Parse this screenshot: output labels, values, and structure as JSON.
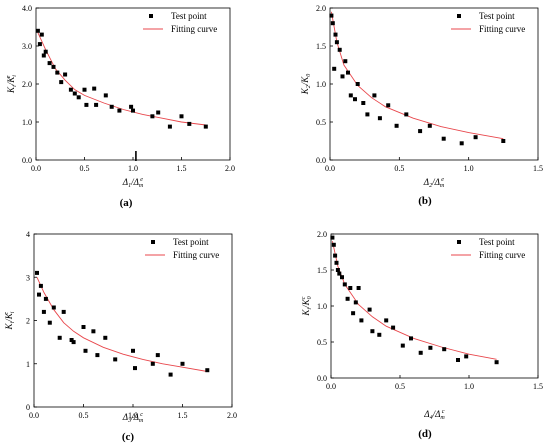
{
  "chart_data": [
    {
      "type": "scatter",
      "caption": "(a)",
      "ylabel": "K_i/K_i^e",
      "ylabel_parts": {
        "base": "K",
        "sub": "i",
        "div": "/K",
        "sub2": "i",
        "sup": "e"
      },
      "xlabel": "Δ_1/Δ_m^e",
      "xlabel_parts": {
        "base": "Δ",
        "sub": "1",
        "div": "/Δ",
        "sub2": "m",
        "sup": "e"
      },
      "xlim": [
        0,
        2.0
      ],
      "ylim": [
        0,
        4.0
      ],
      "xticks": [
        "0.0",
        "0.5",
        "1.0",
        "1.5",
        "2.0"
      ],
      "yticks": [
        "0.0",
        "1.0",
        "2.0",
        "3.0",
        "4.0"
      ],
      "xtick_values": [
        0,
        0.5,
        1.0,
        1.5,
        2.0
      ],
      "ytick_values": [
        0,
        1,
        2,
        3,
        4
      ],
      "legend": {
        "position": "top-right",
        "test": "Test point",
        "fit": "Fitting curve"
      },
      "marker_x": 1.03,
      "test_points": {
        "x": [
          0.02,
          0.04,
          0.06,
          0.08,
          0.1,
          0.14,
          0.18,
          0.22,
          0.26,
          0.3,
          0.36,
          0.4,
          0.44,
          0.5,
          0.52,
          0.6,
          0.62,
          0.72,
          0.78,
          0.86,
          0.98,
          1.0,
          1.2,
          1.26,
          1.38,
          1.5,
          1.58,
          1.75
        ],
        "y": [
          3.4,
          3.05,
          3.3,
          2.75,
          2.85,
          2.55,
          2.45,
          2.3,
          2.05,
          2.25,
          1.85,
          1.75,
          1.65,
          1.85,
          1.45,
          1.88,
          1.45,
          1.7,
          1.4,
          1.3,
          1.4,
          1.3,
          1.15,
          1.25,
          0.88,
          1.15,
          0.95,
          0.88
        ]
      },
      "fitting_curve": {
        "x": [
          0.02,
          0.1,
          0.2,
          0.3,
          0.4,
          0.5,
          0.7,
          0.9,
          1.1,
          1.3,
          1.5,
          1.75
        ],
        "y": [
          3.35,
          2.9,
          2.4,
          2.1,
          1.85,
          1.7,
          1.5,
          1.33,
          1.2,
          1.1,
          1.0,
          0.92
        ]
      }
    },
    {
      "type": "scatter",
      "caption": "(b)",
      "ylabel": "K_2/K_0",
      "ylabel_parts": {
        "base": "K",
        "sub": "2",
        "div": "/K",
        "sub2": "0",
        "sup": ""
      },
      "xlabel": "Δ_2/Δ_m^e",
      "xlabel_parts": {
        "base": "Δ",
        "sub": "2",
        "div": "/Δ",
        "sub2": "m",
        "sup": "e"
      },
      "xlim": [
        0,
        1.5
      ],
      "ylim": [
        0,
        2.0
      ],
      "xticks": [
        "0.0",
        "0.5",
        "1.0",
        "1.5"
      ],
      "yticks": [
        "0.0",
        "0.5",
        "1.0",
        "1.5",
        "2.0"
      ],
      "xtick_values": [
        0,
        0.5,
        1.0,
        1.5
      ],
      "ytick_values": [
        0,
        0.5,
        1.0,
        1.5,
        2.0
      ],
      "legend": {
        "position": "top-right",
        "test": "Test point",
        "fit": "Fitting curve"
      },
      "test_points": {
        "x": [
          0.01,
          0.02,
          0.03,
          0.04,
          0.05,
          0.07,
          0.09,
          0.11,
          0.13,
          0.15,
          0.18,
          0.2,
          0.24,
          0.27,
          0.32,
          0.36,
          0.42,
          0.48,
          0.55,
          0.65,
          0.72,
          0.82,
          0.95,
          1.05,
          1.25
        ],
        "y": [
          1.9,
          1.8,
          1.2,
          1.65,
          1.55,
          1.45,
          1.1,
          1.3,
          1.15,
          0.85,
          0.8,
          1.0,
          0.75,
          0.6,
          0.85,
          0.55,
          0.72,
          0.45,
          0.6,
          0.38,
          0.45,
          0.28,
          0.22,
          0.3,
          0.25
        ]
      },
      "fitting_curve": {
        "x": [
          0.01,
          0.05,
          0.1,
          0.2,
          0.3,
          0.4,
          0.6,
          0.8,
          1.0,
          1.25
        ],
        "y": [
          1.95,
          1.55,
          1.25,
          0.98,
          0.82,
          0.7,
          0.55,
          0.44,
          0.36,
          0.28
        ]
      }
    },
    {
      "type": "scatter",
      "caption": "(c)",
      "ylabel": "K_i/K_i^c",
      "ylabel_parts": {
        "base": "K",
        "sub": "i",
        "div": "/K",
        "sub2": "i",
        "sup": "c"
      },
      "xlabel": "Δ_3/Δ_m^c",
      "xlabel_parts": {
        "base": "Δ",
        "sub": "3",
        "div": "/Δ",
        "sub2": "m",
        "sup": "c"
      },
      "xlim": [
        0,
        2.0
      ],
      "ylim": [
        0,
        4
      ],
      "xticks": [
        "0.0",
        "0.5",
        "1.0",
        "1.5",
        "2.0"
      ],
      "yticks": [
        "0",
        "1",
        "2",
        "3",
        "4"
      ],
      "xtick_values": [
        0,
        0.5,
        1.0,
        1.5,
        2.0
      ],
      "ytick_values": [
        0,
        1,
        2,
        3,
        4
      ],
      "legend": {
        "position": "top-right",
        "test": "Test point",
        "fit": "Fitting curve"
      },
      "test_points": {
        "x": [
          0.03,
          0.05,
          0.07,
          0.1,
          0.12,
          0.16,
          0.2,
          0.26,
          0.3,
          0.38,
          0.4,
          0.5,
          0.52,
          0.6,
          0.64,
          0.72,
          0.82,
          1.0,
          1.02,
          1.2,
          1.25,
          1.38,
          1.5,
          1.75
        ],
        "y": [
          3.1,
          2.6,
          2.8,
          2.2,
          2.5,
          1.95,
          2.3,
          1.6,
          2.2,
          1.55,
          1.5,
          1.85,
          1.3,
          1.75,
          1.2,
          1.6,
          1.1,
          1.3,
          0.9,
          1.0,
          1.2,
          0.75,
          1.0,
          0.85
        ]
      },
      "fitting_curve": {
        "x": [
          0.03,
          0.1,
          0.2,
          0.3,
          0.4,
          0.5,
          0.7,
          0.9,
          1.1,
          1.3,
          1.5,
          1.75
        ],
        "y": [
          3.0,
          2.65,
          2.25,
          1.95,
          1.75,
          1.6,
          1.38,
          1.22,
          1.1,
          1.0,
          0.92,
          0.82
        ]
      }
    },
    {
      "type": "scatter",
      "caption": "(d)",
      "ylabel": "K_i/K_0^c",
      "ylabel_parts": {
        "base": "K",
        "sub": "i",
        "div": "/K",
        "sub2": "0",
        "sup": "c"
      },
      "xlabel": "Δ_4/Δ_m^c",
      "xlabel_parts": {
        "base": "Δ",
        "sub": "4",
        "div": "/Δ",
        "sub2": "m",
        "sup": "c"
      },
      "xlim": [
        0,
        1.5
      ],
      "ylim": [
        0,
        2.0
      ],
      "xticks": [
        "0.0",
        "0.5",
        "1.0",
        "1.5"
      ],
      "yticks": [
        "0.0",
        "0.5",
        "1.0",
        "1.5",
        "2.0"
      ],
      "xtick_values": [
        0,
        0.5,
        1.0,
        1.5
      ],
      "ytick_values": [
        0,
        0.5,
        1.0,
        1.5,
        2.0
      ],
      "legend": {
        "position": "top-right",
        "test": "Test point",
        "fit": "Fitting curve"
      },
      "test_points": {
        "x": [
          0.01,
          0.02,
          0.03,
          0.04,
          0.05,
          0.06,
          0.08,
          0.1,
          0.12,
          0.14,
          0.16,
          0.18,
          0.2,
          0.22,
          0.28,
          0.3,
          0.35,
          0.4,
          0.45,
          0.52,
          0.58,
          0.65,
          0.72,
          0.82,
          0.92,
          0.98,
          1.2
        ],
        "y": [
          1.95,
          1.85,
          1.7,
          1.6,
          1.5,
          1.45,
          1.4,
          1.3,
          1.1,
          1.25,
          0.9,
          1.05,
          1.25,
          0.8,
          0.95,
          0.65,
          0.6,
          0.8,
          0.7,
          0.45,
          0.55,
          0.35,
          0.42,
          0.4,
          0.25,
          0.3,
          0.22
        ]
      },
      "fitting_curve": {
        "x": [
          0.01,
          0.05,
          0.1,
          0.2,
          0.3,
          0.4,
          0.6,
          0.8,
          1.0,
          1.2
        ],
        "y": [
          1.9,
          1.55,
          1.3,
          1.02,
          0.85,
          0.72,
          0.55,
          0.43,
          0.33,
          0.26
        ]
      }
    }
  ]
}
